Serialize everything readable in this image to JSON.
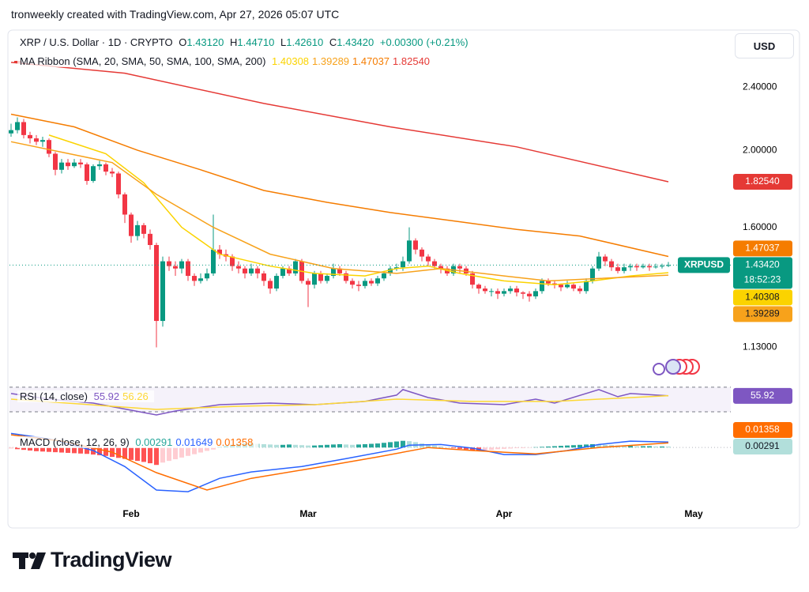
{
  "header": {
    "attribution": "tronweekly created with TradingView.com, Apr 27, 2026 05:07 UTC",
    "currency": "USD"
  },
  "footer": {
    "brand": "TradingView"
  },
  "chart_data": [
    {
      "type": "candlestick",
      "title": "XRP / U.S. Dollar · 1D · CRYPTO",
      "ohlc_letters": [
        "O",
        "H",
        "L",
        "C"
      ],
      "ohlc_labels": [
        "1.43120",
        "1.44710",
        "1.42610",
        "1.43420"
      ],
      "change": "+0.00300",
      "change_pct": "(+0.21%)",
      "symbol": "XRPUSD",
      "countdown": "18:52:23",
      "overlay_title": "MA Ribbon (SMA, 20, SMA, 50, SMA, 100, SMA, 200)",
      "up_color": "#089981",
      "down_color": "#f23645",
      "log_scale": true,
      "xlim": [
        -0.25,
        113.875
      ],
      "xticks": [
        {
          "value": 19,
          "label": "Feb"
        },
        {
          "value": 47,
          "label": "Mar"
        },
        {
          "value": 78,
          "label": "Apr"
        },
        {
          "value": 108,
          "label": "May"
        }
      ],
      "ylim": [
        1.03,
        2.82
      ],
      "yticks": [
        {
          "value": 1.13,
          "label": "1.13000"
        },
        {
          "value": 1.6,
          "label": "1.60000"
        },
        {
          "value": 2.0,
          "label": "2.00000"
        },
        {
          "value": 2.4,
          "label": "2.40000"
        }
      ],
      "open": [
        2.1,
        2.12,
        2.17,
        2.09,
        2.07,
        2.05,
        2.06,
        1.98,
        1.89,
        1.93,
        1.91,
        1.93,
        1.92,
        1.83,
        1.91,
        1.92,
        1.88,
        1.87,
        1.76,
        1.66,
        1.56,
        1.61,
        1.57,
        1.52,
        1.22,
        1.45,
        1.43,
        1.42,
        1.45,
        1.39,
        1.37,
        1.38,
        1.4,
        1.5,
        1.48,
        1.47,
        1.43,
        1.42,
        1.4,
        1.42,
        1.4,
        1.37,
        1.34,
        1.39,
        1.42,
        1.4,
        1.45,
        1.37,
        1.355,
        1.4,
        1.37,
        1.39,
        1.42,
        1.4,
        1.37,
        1.355,
        1.35,
        1.37,
        1.36,
        1.38,
        1.4,
        1.42,
        1.425,
        1.45,
        1.54,
        1.5,
        1.47,
        1.45,
        1.43,
        1.42,
        1.4,
        1.43,
        1.42,
        1.4,
        1.355,
        1.34,
        1.33,
        1.33,
        1.32,
        1.33,
        1.34,
        1.325,
        1.32,
        1.31,
        1.33,
        1.37,
        1.36,
        1.355,
        1.345,
        1.355,
        1.34,
        1.33,
        1.37,
        1.42,
        1.47,
        1.45,
        1.425,
        1.41,
        1.425,
        1.43,
        1.425,
        1.43,
        1.425,
        1.428,
        1.4312
      ],
      "high": [
        2.16,
        2.2,
        2.19,
        2.11,
        2.09,
        2.08,
        2.07,
        1.99,
        1.95,
        1.95,
        1.95,
        1.95,
        1.93,
        1.92,
        1.94,
        1.93,
        1.9,
        1.88,
        1.77,
        1.67,
        1.63,
        1.62,
        1.59,
        1.53,
        1.47,
        1.47,
        1.45,
        1.46,
        1.46,
        1.4,
        1.4,
        1.42,
        1.66,
        1.52,
        1.5,
        1.48,
        1.45,
        1.43,
        1.44,
        1.43,
        1.41,
        1.38,
        1.4,
        1.43,
        1.43,
        1.46,
        1.46,
        1.38,
        1.41,
        1.41,
        1.4,
        1.44,
        1.43,
        1.41,
        1.38,
        1.37,
        1.38,
        1.38,
        1.39,
        1.41,
        1.43,
        1.44,
        1.47,
        1.6,
        1.55,
        1.51,
        1.48,
        1.46,
        1.44,
        1.43,
        1.44,
        1.44,
        1.43,
        1.41,
        1.36,
        1.35,
        1.34,
        1.34,
        1.34,
        1.35,
        1.35,
        1.33,
        1.33,
        1.34,
        1.38,
        1.38,
        1.37,
        1.36,
        1.37,
        1.36,
        1.35,
        1.38,
        1.43,
        1.49,
        1.48,
        1.46,
        1.44,
        1.44,
        1.44,
        1.44,
        1.44,
        1.44,
        1.44,
        1.44,
        1.4471
      ],
      "low": [
        2.08,
        2.1,
        2.07,
        2.04,
        2.03,
        2.02,
        1.96,
        1.86,
        1.87,
        1.89,
        1.9,
        1.9,
        1.81,
        1.82,
        1.89,
        1.86,
        1.85,
        1.74,
        1.62,
        1.53,
        1.54,
        1.55,
        1.5,
        1.13,
        1.2,
        1.41,
        1.39,
        1.4,
        1.37,
        1.35,
        1.36,
        1.37,
        1.39,
        1.46,
        1.45,
        1.41,
        1.4,
        1.38,
        1.39,
        1.38,
        1.35,
        1.32,
        1.33,
        1.38,
        1.39,
        1.39,
        1.36,
        1.27,
        1.34,
        1.36,
        1.36,
        1.38,
        1.39,
        1.36,
        1.34,
        1.33,
        1.34,
        1.35,
        1.35,
        1.37,
        1.39,
        1.41,
        1.41,
        1.44,
        1.48,
        1.45,
        1.43,
        1.42,
        1.4,
        1.39,
        1.39,
        1.4,
        1.39,
        1.34,
        1.32,
        1.32,
        1.31,
        1.3,
        1.31,
        1.32,
        1.31,
        1.3,
        1.29,
        1.3,
        1.32,
        1.35,
        1.34,
        1.33,
        1.34,
        1.33,
        1.32,
        1.32,
        1.36,
        1.41,
        1.43,
        1.41,
        1.4,
        1.4,
        1.41,
        1.41,
        1.42,
        1.41,
        1.42,
        1.42,
        1.4261
      ],
      "close": [
        2.12,
        2.17,
        2.09,
        2.07,
        2.05,
        2.06,
        1.98,
        1.89,
        1.93,
        1.91,
        1.93,
        1.92,
        1.83,
        1.91,
        1.92,
        1.88,
        1.87,
        1.76,
        1.66,
        1.56,
        1.61,
        1.57,
        1.52,
        1.22,
        1.45,
        1.43,
        1.42,
        1.45,
        1.39,
        1.37,
        1.38,
        1.4,
        1.5,
        1.48,
        1.47,
        1.43,
        1.42,
        1.4,
        1.42,
        1.4,
        1.37,
        1.34,
        1.39,
        1.42,
        1.4,
        1.45,
        1.37,
        1.355,
        1.4,
        1.37,
        1.39,
        1.42,
        1.4,
        1.37,
        1.355,
        1.35,
        1.37,
        1.36,
        1.38,
        1.4,
        1.42,
        1.425,
        1.45,
        1.54,
        1.5,
        1.47,
        1.45,
        1.43,
        1.42,
        1.4,
        1.43,
        1.42,
        1.4,
        1.355,
        1.34,
        1.33,
        1.33,
        1.32,
        1.33,
        1.34,
        1.325,
        1.32,
        1.31,
        1.33,
        1.37,
        1.36,
        1.355,
        1.345,
        1.355,
        1.34,
        1.33,
        1.37,
        1.42,
        1.47,
        1.45,
        1.425,
        1.41,
        1.425,
        1.43,
        1.425,
        1.43,
        1.425,
        1.428,
        1.4312,
        1.4342
      ],
      "series": [
        {
          "color": "#fbd300",
          "x": [
            6,
            15,
            21,
            27,
            33,
            41,
            48,
            56,
            61,
            66,
            71,
            78,
            86,
            92,
            98,
            104
          ],
          "values": [
            2.09,
            1.98,
            1.82,
            1.6,
            1.48,
            1.43,
            1.4,
            1.39,
            1.42,
            1.43,
            1.4,
            1.37,
            1.355,
            1.37,
            1.39,
            1.40308
          ],
          "value_labels": [
            null,
            null,
            null,
            null,
            null,
            null,
            null,
            null,
            null,
            null,
            null,
            null,
            null,
            null,
            null,
            "1.40308"
          ]
        },
        {
          "color": "#f7a21b",
          "x": [
            0,
            16,
            23,
            32,
            41,
            51,
            61,
            68,
            78,
            85,
            104
          ],
          "values": [
            2.05,
            1.93,
            1.76,
            1.6,
            1.48,
            1.42,
            1.4,
            1.42,
            1.39,
            1.37,
            1.39289
          ],
          "value_labels": [
            null,
            null,
            null,
            null,
            null,
            null,
            null,
            null,
            null,
            null,
            "1.39289"
          ]
        },
        {
          "color": "#f57c00",
          "x": [
            0,
            10,
            20,
            30,
            40,
            50,
            60,
            70,
            80,
            90,
            104
          ],
          "values": [
            2.22,
            2.14,
            2.0,
            1.89,
            1.78,
            1.72,
            1.67,
            1.63,
            1.59,
            1.56,
            1.47037
          ],
          "value_labels": [
            null,
            null,
            null,
            null,
            null,
            null,
            null,
            null,
            null,
            null,
            "1.47037"
          ]
        },
        {
          "color": "#e53935",
          "x": [
            0,
            18,
            40,
            60,
            80,
            104
          ],
          "values": [
            2.58,
            2.5,
            2.29,
            2.14,
            2.02,
            1.8254
          ],
          "value_labels": [
            null,
            null,
            null,
            null,
            null,
            "1.82540"
          ]
        }
      ]
    },
    {
      "type": "line",
      "title": "RSI (14, close)",
      "ylim": [
        21,
        75
      ],
      "band": [
        30,
        70
      ],
      "band_color": "#7e57c2",
      "series": [
        {
          "color": "#7e57c2",
          "axis_label": true,
          "x": [
            0,
            6,
            13,
            23,
            26,
            33,
            41,
            48,
            56,
            61,
            62,
            66,
            71,
            78,
            83,
            86,
            93,
            96,
            98,
            104
          ],
          "values": [
            59.7,
            50.6,
            44.2,
            24.8,
            31.3,
            41.6,
            44.2,
            41.6,
            46.8,
            57.1,
            66.1,
            53.2,
            44.2,
            41.6,
            50.6,
            44.2,
            66.1,
            54.5,
            59.7,
            55.92
          ],
          "value_labels": [
            null,
            null,
            null,
            null,
            null,
            null,
            null,
            null,
            null,
            null,
            null,
            null,
            null,
            null,
            null,
            null,
            null,
            null,
            null,
            "55.92"
          ]
        },
        {
          "color": "#fdd835",
          "axis_label": false,
          "x": [
            0,
            23,
            36,
            48,
            61,
            73,
            86,
            104
          ],
          "values": [
            50.6,
            33.9,
            39.0,
            41.6,
            50.6,
            46.8,
            46.8,
            56.26
          ],
          "value_labels": [
            null,
            null,
            null,
            null,
            null,
            null,
            null,
            "56.26"
          ]
        }
      ]
    },
    {
      "type": "macd",
      "title": "MACD (close, 12, 26, 9)",
      "ylim": [
        -0.186,
        0.05
      ],
      "histogram": {
        "colors": [
          "#26a69a",
          "#b2dfdb",
          "#ffcdd2",
          "#ff5252"
        ],
        "axis_label": true,
        "values": [
          -0.003,
          -0.005,
          -0.007,
          -0.009,
          -0.011,
          -0.012,
          -0.013,
          -0.014,
          -0.015,
          -0.016,
          -0.017,
          -0.018,
          -0.019,
          -0.021,
          -0.023,
          -0.025,
          -0.028,
          -0.031,
          -0.034,
          -0.037,
          -0.04,
          -0.043,
          -0.047,
          -0.052,
          -0.045,
          -0.04,
          -0.035,
          -0.03,
          -0.025,
          -0.02,
          -0.015,
          -0.01,
          -0.006,
          0.002,
          0.005,
          0.008,
          0.01,
          0.012,
          0.012,
          0.011,
          0.01,
          0.009,
          0.008,
          0.008,
          0.009,
          0.008,
          0.007,
          0.006,
          0.006,
          0.007,
          0.008,
          0.009,
          0.01,
          0.009,
          0.008,
          0.009,
          0.01,
          0.011,
          0.012,
          0.014,
          0.016,
          0.018,
          0.02,
          0.019,
          0.016,
          0.012,
          0.009,
          0.006,
          0.003,
          0.001,
          -0.002,
          -0.004,
          -0.006,
          -0.008,
          -0.009,
          -0.008,
          -0.007,
          -0.005,
          -0.004,
          -0.003,
          -0.002,
          -0.002,
          -0.001,
          0.001,
          0.002,
          0.003,
          0.004,
          0.005,
          0.006,
          0.007,
          0.008,
          0.009,
          0.01,
          0.009,
          0.008,
          0.007,
          0.006,
          0.005,
          0.005,
          0.004,
          0.004,
          0.004,
          0.003,
          0.003,
          0.00291
        ],
        "value_labels": [
          null,
          null,
          null,
          null,
          null,
          null,
          null,
          null,
          null,
          null,
          null,
          null,
          null,
          null,
          null,
          null,
          null,
          null,
          null,
          null,
          null,
          null,
          null,
          null,
          null,
          null,
          null,
          null,
          null,
          null,
          null,
          null,
          null,
          null,
          null,
          null,
          null,
          null,
          null,
          null,
          null,
          null,
          null,
          null,
          null,
          null,
          null,
          null,
          null,
          null,
          null,
          null,
          null,
          null,
          null,
          null,
          null,
          null,
          null,
          null,
          null,
          null,
          null,
          null,
          null,
          null,
          null,
          null,
          null,
          null,
          null,
          null,
          null,
          null,
          null,
          null,
          null,
          null,
          null,
          null,
          null,
          null,
          null,
          null,
          null,
          null,
          null,
          null,
          null,
          null,
          null,
          null,
          null,
          null,
          null,
          null,
          null,
          null,
          null,
          null,
          null,
          null,
          null,
          null,
          "0.00291"
        ]
      },
      "series": [
        {
          "color": "#2962ff",
          "axis_label": false,
          "x": [
            0,
            6,
            13,
            18,
            23,
            28,
            33,
            38,
            46,
            53,
            61,
            63,
            68,
            73,
            78,
            83,
            88,
            93,
            98,
            104
          ],
          "values": [
            0.042,
            0.026,
            -0.009,
            -0.057,
            -0.127,
            -0.132,
            -0.092,
            -0.073,
            -0.057,
            -0.033,
            -0.005,
            0.007,
            0.009,
            -0.002,
            -0.021,
            -0.021,
            -0.009,
            0.009,
            0.019,
            0.01649
          ],
          "value_labels": [
            null,
            null,
            null,
            null,
            null,
            null,
            null,
            null,
            null,
            null,
            null,
            null,
            null,
            null,
            null,
            null,
            null,
            null,
            null,
            "0.01649"
          ]
        },
        {
          "color": "#ff6d00",
          "axis_label": true,
          "x": [
            0,
            8,
            16,
            23,
            31,
            38,
            48,
            58,
            66,
            73,
            83,
            93,
            104
          ],
          "values": [
            0.038,
            0.019,
            -0.014,
            -0.075,
            -0.127,
            -0.092,
            -0.061,
            -0.028,
            0,
            -0.009,
            -0.019,
            0,
            0.01358
          ],
          "value_labels": [
            null,
            null,
            null,
            null,
            null,
            null,
            null,
            null,
            null,
            null,
            null,
            null,
            "0.01358"
          ]
        }
      ]
    }
  ]
}
